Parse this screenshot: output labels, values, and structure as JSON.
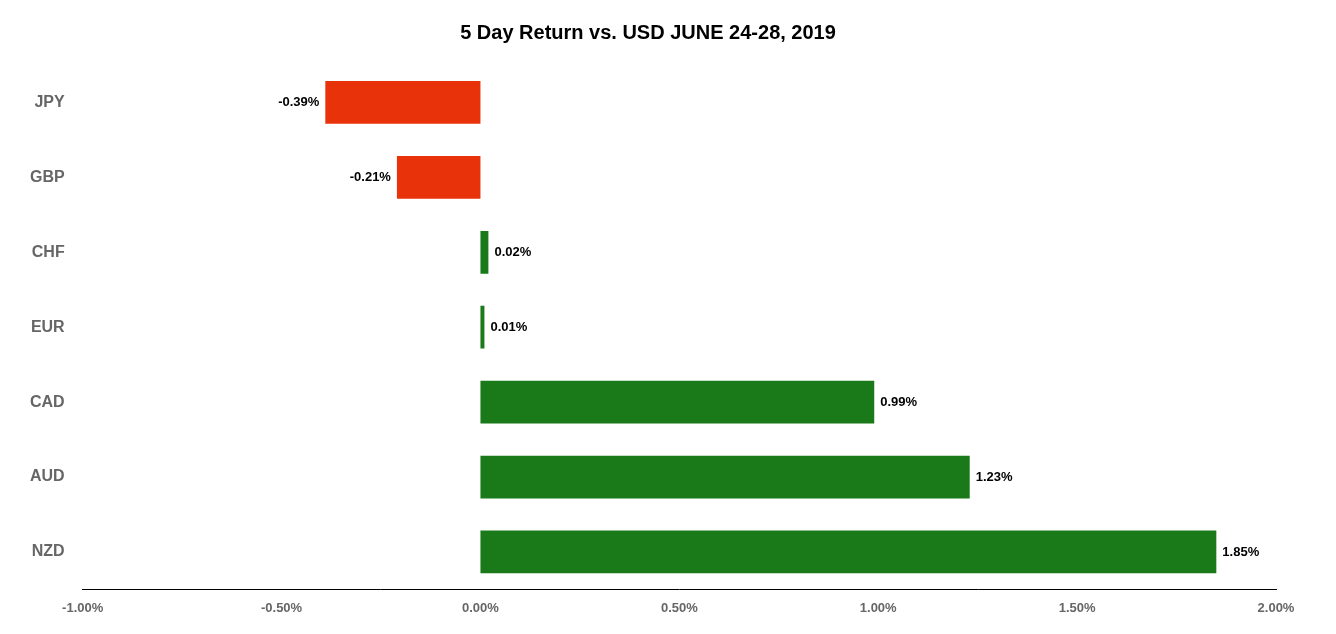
{
  "chart_data": {
    "type": "bar",
    "orientation": "horizontal",
    "title": "5 Day Return vs. USD JUNE 24-28, 2019",
    "categories": [
      "JPY",
      "GBP",
      "CHF",
      "EUR",
      "CAD",
      "AUD",
      "NZD"
    ],
    "values": [
      -0.39,
      -0.21,
      0.02,
      0.01,
      0.99,
      1.23,
      1.85
    ],
    "value_labels": [
      "-0.39%",
      "-0.21%",
      "0.02%",
      "0.01%",
      "0.99%",
      "1.23%",
      "1.85%"
    ],
    "data_labels": true,
    "colors": [
      "#e8320a",
      "#e8320a",
      "#1a7a1a",
      "#1a7a1a",
      "#1a7a1a",
      "#1a7a1a",
      "#1a7a1a"
    ],
    "xlim": [
      -1.0,
      2.0
    ],
    "xticks": [
      {
        "value": -1.0,
        "label": "-1.00%"
      },
      {
        "value": -0.5,
        "label": "-0.50%"
      },
      {
        "value": 0,
        "label": "0.00%"
      },
      {
        "value": 0.5,
        "label": "0.50%"
      },
      {
        "value": 1.0,
        "label": "1.00%"
      },
      {
        "value": 1.5,
        "label": "1.50%"
      },
      {
        "value": 2.0,
        "label": "2.00%"
      }
    ],
    "grid": false
  }
}
